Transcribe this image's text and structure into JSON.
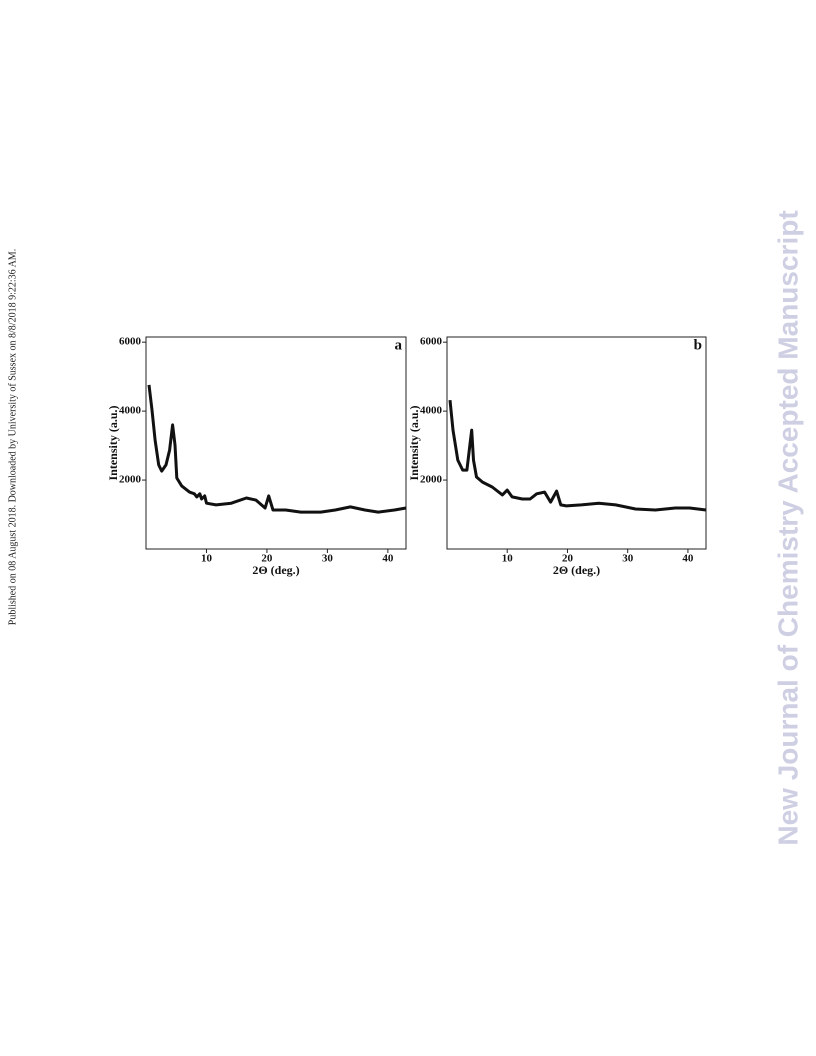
{
  "side_note": "Published on 08 August 2018. Downloaded by University of Sussex on 8/8/2018 9:22:36 AM.",
  "watermark": "New Journal of Chemistry Accepted Manuscript",
  "chart_data": [
    {
      "type": "line",
      "label": "a",
      "x_label": "2Θ (deg.)",
      "y_label": "Intensity (a.u.)",
      "xlim": [
        0,
        43
      ],
      "ylim": [
        0,
        6150
      ],
      "xticks": [
        10,
        20,
        30,
        40
      ],
      "yticks": [
        2000,
        4000,
        6000
      ],
      "series": [
        {
          "color": "#111111",
          "x": [
            0.5,
            1,
            1.5,
            2.1,
            2.6,
            3.3,
            3.9,
            4.4,
            4.8,
            5.1,
            5.9,
            7.2,
            8.0,
            8.4,
            8.9,
            9.2,
            9.7,
            10,
            11.6,
            14.1,
            16.6,
            18.2,
            19.7,
            20.3,
            21.0,
            23.1,
            25.6,
            28.9,
            31.3,
            33.8,
            36.2,
            38.4,
            41.1,
            43
          ],
          "values": [
            4760,
            4030,
            3160,
            2440,
            2260,
            2440,
            2870,
            3600,
            3020,
            2060,
            1830,
            1650,
            1600,
            1510,
            1600,
            1450,
            1540,
            1330,
            1280,
            1330,
            1480,
            1420,
            1190,
            1540,
            1130,
            1130,
            1070,
            1070,
            1130,
            1220,
            1130,
            1070,
            1130,
            1190
          ]
        }
      ]
    },
    {
      "type": "line",
      "label": "b",
      "x_label": "2Θ (deg.)",
      "y_label": "Intensity (a.u.)",
      "xlim": [
        0,
        43
      ],
      "ylim": [
        0,
        6150
      ],
      "xticks": [
        10,
        20,
        30,
        40
      ],
      "yticks": [
        2000,
        4000,
        6000
      ],
      "series": [
        {
          "color": "#111111",
          "x": [
            0.5,
            1,
            1.8,
            2.6,
            3.3,
            3.8,
            4.1,
            4.4,
            4.9,
            5.9,
            7.5,
            9.2,
            10,
            10.8,
            12.5,
            13.8,
            14.9,
            16.2,
            17.2,
            18.2,
            18.9,
            19.8,
            22.3,
            25.2,
            28,
            31.3,
            34.6,
            37.9,
            40.3,
            43
          ],
          "values": [
            4320,
            3450,
            2580,
            2290,
            2290,
            3020,
            3450,
            2580,
            2090,
            1940,
            1800,
            1570,
            1710,
            1510,
            1450,
            1450,
            1600,
            1650,
            1360,
            1680,
            1280,
            1250,
            1280,
            1330,
            1280,
            1160,
            1130,
            1190,
            1190,
            1130
          ]
        }
      ]
    }
  ]
}
